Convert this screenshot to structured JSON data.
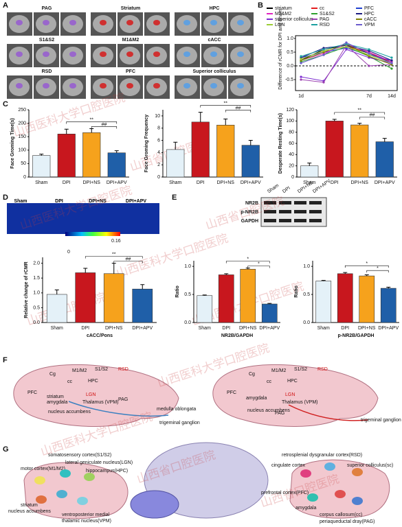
{
  "panel_labels": [
    "A",
    "B",
    "C",
    "D",
    "E",
    "F",
    "G"
  ],
  "watermarks": [
    "山西医科大学口腔医院",
    "山西省口腔医院"
  ],
  "panel_a": {
    "regions": [
      "PAG",
      "Striatum",
      "HPC",
      "S1&S2",
      "M1&M2",
      "cACC",
      "RSD",
      "PFC",
      "Superior colliculus"
    ]
  },
  "panel_d": {
    "groups": [
      "Sham",
      "DPI",
      "DPI+NS",
      "DPI+APV"
    ],
    "colorbar": [
      0,
      0.16
    ]
  },
  "panel_e": {
    "lanes": [
      "Sham",
      "DPI",
      "DPI+NS",
      "DPI+APV"
    ],
    "bands": [
      "NR2B",
      "p-NR2B",
      "GAPDH"
    ]
  },
  "panel_f": {
    "left": [
      "Cg",
      "M1/M2",
      "S1/S2",
      "RSD",
      "PFC",
      "cc",
      "HPC",
      "striatum",
      "amygdala",
      "LGN",
      "Thalamus (VPM)",
      "PAG",
      "nucleus accumbens",
      "medulla oblongata",
      "trigeminal ganglion"
    ],
    "right": [
      "Cg",
      "M1/M2",
      "S1/S2",
      "RSD",
      "PFC",
      "cc",
      "HPC",
      "amygdala",
      "LGN",
      "Thalamus (VPM)",
      "PAG",
      "nucleus accumbens",
      "trigeminal ganglion"
    ]
  },
  "panel_g": {
    "left": [
      "somatosensory cortex(S1/S2)",
      "lateral geniculate nucleus(LGN)",
      "motor cortex(M1/M2)",
      "hippocampus(HPC)",
      "striatum",
      "nucleus accumbens",
      "ventroposterior medial",
      "thalamic nucleus(VPM)"
    ],
    "right": [
      "retrosplenial dysgranular cortex(RSD)",
      "cingulate cortex",
      "superior colliculus(sc)",
      "prefrontal cortex(PFC)",
      "amygdala",
      "corpus callosum(cc)",
      "periaqueductal dray(PAG)"
    ]
  },
  "chart_data": [
    {
      "type": "line",
      "ylabel": "Difference of rCMR for DPI and Sham",
      "categories": [
        "1d",
        null,
        null,
        "7d",
        "14d"
      ],
      "ylim": [
        -0.9,
        1.1
      ],
      "yticks": [
        {
          "value": -0.5,
          "label": "-0.5"
        },
        {
          "value": 0,
          "label": "0.0"
        },
        {
          "value": 0.5,
          "label": "0.5"
        },
        {
          "value": 1,
          "label": "1.0"
        }
      ],
      "series": [
        {
          "name": "striatum",
          "color": "#000000",
          "values": [
            0.2,
            0.6,
            0.75,
            0.45,
            0.15
          ]
        },
        {
          "name": "cc",
          "color": "#e41a1c",
          "values": [
            0.25,
            0.55,
            0.7,
            0.5,
            0.1
          ]
        },
        {
          "name": "PFC",
          "color": "#1f3fd0",
          "values": [
            0.3,
            0.5,
            0.65,
            0.4,
            0.2
          ]
        },
        {
          "name": "M1&M2",
          "color": "#e020c0",
          "values": [
            0.2,
            0.45,
            0.8,
            0.5,
            0.15
          ]
        },
        {
          "name": "S1&S2",
          "color": "#2ca02c",
          "values": [
            0.15,
            0.4,
            0.7,
            0.35,
            -0.1
          ]
        },
        {
          "name": "HPC",
          "color": "#1a1a80",
          "values": [
            0.3,
            0.65,
            0.75,
            0.55,
            0.2
          ]
        },
        {
          "name": "superior colliculus",
          "color": "#7b2bd0",
          "values": [
            -0.4,
            -0.55,
            0.6,
            0.3,
            0.1
          ]
        },
        {
          "name": "PAG",
          "color": "#9a3fb0",
          "values": [
            -0.5,
            -0.6,
            0.75,
            0.0,
            0.05
          ]
        },
        {
          "name": "cACC",
          "color": "#808000",
          "values": [
            0.2,
            0.5,
            0.8,
            0.35,
            0.05
          ]
        },
        {
          "name": "LGN",
          "color": "#9acd32",
          "values": [
            0.25,
            0.55,
            0.7,
            0.4,
            0.1
          ]
        },
        {
          "name": "RSD",
          "color": "#1aa0a0",
          "values": [
            0.35,
            0.6,
            0.8,
            0.6,
            0.3
          ]
        },
        {
          "name": "VPM",
          "color": "#6a5acd",
          "values": [
            0.1,
            0.4,
            0.85,
            0.45,
            0.1
          ]
        }
      ]
    },
    {
      "type": "bar",
      "ylabel": "Face Groming Time(s)",
      "categories": [
        "Sham",
        "DPI",
        "DPI+NS",
        "DPI+APV"
      ],
      "values": [
        80,
        160,
        165,
        90
      ],
      "errors": [
        5,
        18,
        15,
        8
      ],
      "ylim": [
        0,
        250
      ],
      "yticks": [
        0,
        50,
        100,
        150,
        200,
        250
      ],
      "annotations": [
        "**",
        "##"
      ]
    },
    {
      "type": "bar",
      "ylabel": "Face Groming Frequency",
      "categories": [
        "Sham",
        "DPI",
        "DPI+NS",
        "DPI+APV"
      ],
      "values": [
        4.5,
        9,
        8.5,
        5.2
      ],
      "errors": [
        1.2,
        1.6,
        1,
        0.8
      ],
      "ylim": [
        0,
        11
      ],
      "yticks": [
        0,
        2,
        4,
        6,
        8,
        10
      ],
      "annotations": [
        "**",
        "##"
      ]
    },
    {
      "type": "bar",
      "ylabel": "Desperate Resting Time(s)",
      "categories": [
        "Sham",
        "DPI",
        "DPI+NS",
        "DPI+APV"
      ],
      "values": [
        20,
        100,
        93,
        63
      ],
      "errors": [
        5,
        3,
        3,
        6
      ],
      "ylim": [
        0,
        120
      ],
      "yticks": [
        0,
        20,
        40,
        60,
        80,
        100,
        120
      ],
      "annotations": [
        "**",
        "##"
      ]
    },
    {
      "type": "bar",
      "ylabel": "Relative change of rCMR",
      "xlabel": "cACC/Pons",
      "categories": [
        "Sham",
        "DPI",
        "DPI+NS",
        "DPI+APV"
      ],
      "values": [
        0.95,
        1.68,
        1.65,
        1.13
      ],
      "errors": [
        0.15,
        0.15,
        0.35,
        0.15
      ],
      "ylim": [
        0,
        2.2
      ],
      "yticks": [
        {
          "value": 0,
          "label": "0.0"
        },
        {
          "value": 0.5,
          "label": "0.5"
        },
        {
          "value": 1,
          "label": "1.0"
        },
        {
          "value": 1.5,
          "label": "1.5"
        },
        {
          "value": 2,
          "label": "2.0"
        }
      ],
      "annotations": [
        "**",
        "##"
      ]
    },
    {
      "type": "bar",
      "ylabel": "Ratio",
      "xlabel": "NR2B/GAPDH",
      "categories": [
        "Sham",
        "DPI",
        "DPI+NS",
        "DPI+APV"
      ],
      "values": [
        0.48,
        0.85,
        0.95,
        0.33
      ],
      "errors": [
        0.01,
        0.02,
        0.02,
        0.01
      ],
      "ylim": [
        0,
        1.1
      ],
      "yticks": [
        {
          "value": 0,
          "label": "0.0"
        },
        {
          "value": 0.5,
          "label": "0.5"
        },
        {
          "value": 1,
          "label": "1.0"
        }
      ],
      "annotations": [
        "*",
        "*"
      ]
    },
    {
      "type": "bar",
      "ylabel": "Ratio",
      "xlabel": "p-NR2B/GAPDH",
      "categories": [
        "Sham",
        "DPI",
        "DPI+NS",
        "DPI+APV"
      ],
      "values": [
        0.74,
        0.87,
        0.83,
        0.61
      ],
      "errors": [
        0.01,
        0.02,
        0.02,
        0.02
      ],
      "ylim": [
        0,
        1.1
      ],
      "yticks": [
        {
          "value": 0,
          "label": "0.0"
        },
        {
          "value": 0.5,
          "label": "0.5"
        },
        {
          "value": 1,
          "label": "1.0"
        }
      ],
      "annotations": [
        "*",
        "*"
      ]
    }
  ]
}
